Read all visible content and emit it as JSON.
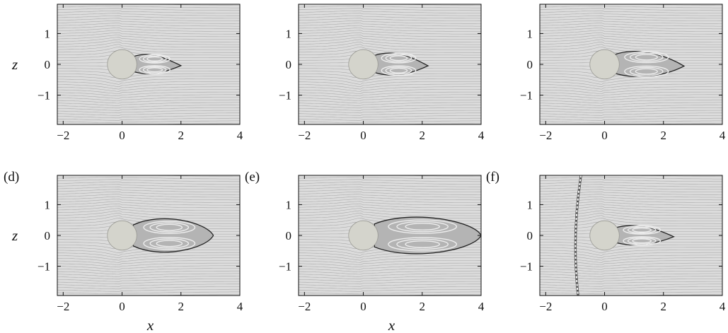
{
  "figure": {
    "panels": [
      {
        "id": "a",
        "label": "",
        "recirculation": {
          "x0": 0.38,
          "x1": 2.0,
          "w": 0.42,
          "tip": "narrow"
        },
        "has_front_curve": false,
        "ylabel": "z",
        "xlabel": ""
      },
      {
        "id": "b",
        "label": "",
        "recirculation": {
          "x0": 0.38,
          "x1": 2.2,
          "w": 0.48,
          "tip": "narrow"
        },
        "has_front_curve": false,
        "ylabel": "",
        "xlabel": ""
      },
      {
        "id": "c",
        "label": "",
        "recirculation": {
          "x0": 0.38,
          "x1": 2.7,
          "w": 0.55,
          "tip": "narrow"
        },
        "has_front_curve": false,
        "ylabel": "",
        "xlabel": ""
      },
      {
        "id": "d",
        "label": "(d)",
        "recirculation": {
          "x0": 0.38,
          "x1": 3.1,
          "w": 0.62,
          "tip": "wide"
        },
        "has_front_curve": false,
        "ylabel": "z",
        "xlabel": "x"
      },
      {
        "id": "e",
        "label": "(e)",
        "recirculation": {
          "x0": 0.38,
          "x1": 4.0,
          "w": 0.68,
          "tip": "wide"
        },
        "has_front_curve": false,
        "ylabel": "",
        "xlabel": "x"
      },
      {
        "id": "f",
        "label": "(f)",
        "recirculation": {
          "x0": 0.38,
          "x1": 2.35,
          "w": 0.42,
          "tip": "narrow"
        },
        "has_front_curve": true,
        "ylabel": "",
        "xlabel": ""
      }
    ],
    "x_ticks": [
      "−2",
      "0",
      "2",
      "4"
    ],
    "x_tick_values": [
      -2,
      0,
      2,
      4
    ],
    "y_ticks": [
      "1",
      "0",
      "−1"
    ],
    "y_tick_values": [
      1,
      0,
      -1
    ],
    "x_range": [
      -2.2,
      4.0
    ],
    "z_range": [
      -1.95,
      1.95
    ],
    "cylinder_radius": 0.5,
    "colors": {
      "background": "#dcdcdc",
      "cylinder": "#d4d4cc",
      "streamline": "#a8a8a8",
      "recirc_fill": "#b4b4b4",
      "recirc_edge": "#222222",
      "front_curve": "#ffffff"
    }
  }
}
